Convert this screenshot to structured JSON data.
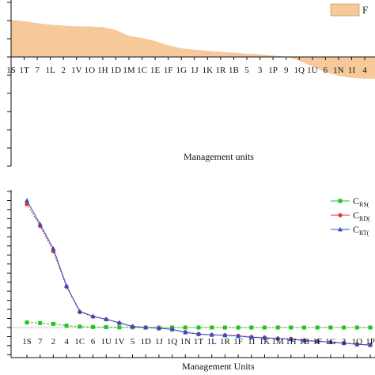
{
  "chart_data": [
    {
      "type": "area",
      "xlabel": "Management units",
      "ylabel": "",
      "ylim": [
        -3,
        1.5
      ],
      "categories": [
        "1S",
        "1T",
        "7",
        "1L",
        "2",
        "1V",
        "1O",
        "1H",
        "1D",
        "1M",
        "1C",
        "1E",
        "1F",
        "1G",
        "1J",
        "1K",
        "1R",
        "1B",
        "5",
        "3",
        "1P",
        "9",
        "1Q",
        "1U",
        "6",
        "1N",
        "1I",
        "4"
      ],
      "series": [
        {
          "name": "F",
          "values": [
            1.02,
            0.98,
            0.93,
            0.89,
            0.86,
            0.84,
            0.84,
            0.82,
            0.74,
            0.58,
            0.52,
            0.44,
            0.32,
            0.24,
            0.2,
            0.17,
            0.14,
            0.12,
            0.09,
            0.07,
            0.04,
            0.01,
            -0.1,
            -0.26,
            -0.42,
            -0.52,
            -0.57,
            -0.6
          ],
          "color": "#f6c99a"
        }
      ],
      "grid": false,
      "legend": "top-right"
    },
    {
      "type": "line",
      "xlabel": "Management Units",
      "ylabel": "",
      "ylim": [
        -1.5,
        7.5
      ],
      "categories": [
        "1S",
        "7",
        "2",
        "4",
        "1C",
        "6",
        "1U",
        "1V",
        "5",
        "1D",
        "1J",
        "1Q",
        "1N",
        "1T",
        "1L",
        "1R",
        "1F",
        "1I",
        "1K",
        "1M",
        "1H",
        "1B",
        "1F",
        "1G",
        "3",
        "1O",
        "1P"
      ],
      "series": [
        {
          "name": "C",
          "sub": "RS(",
          "color": "#22c222",
          "marker": "square",
          "values": [
            0.28,
            0.25,
            0.2,
            0.1,
            0.05,
            0.03,
            0.02,
            0.01,
            0.01,
            0.0,
            0.0,
            0.0,
            0.0,
            0.0,
            0.0,
            0.0,
            0.0,
            0.0,
            0.0,
            0.0,
            0.0,
            0.0,
            0.0,
            0.0,
            0.0,
            0.0,
            0.0
          ]
        },
        {
          "name": "C",
          "sub": "RD(",
          "color": "#e03232",
          "marker": "circle",
          "values": [
            6.8,
            5.6,
            4.2,
            2.25,
            0.85,
            0.6,
            0.45,
            0.25,
            0.05,
            0.0,
            -0.05,
            -0.1,
            -0.25,
            -0.35,
            -0.4,
            -0.42,
            -0.45,
            -0.52,
            -0.55,
            -0.6,
            -0.62,
            -0.7,
            -0.75,
            -0.8,
            -0.85,
            -0.92,
            -0.95
          ]
        },
        {
          "name": "C",
          "sub": "RT(",
          "color": "#2a4fc8",
          "marker": "triangle",
          "values": [
            7.0,
            5.7,
            4.35,
            2.3,
            0.9,
            0.62,
            0.46,
            0.27,
            0.06,
            0.01,
            -0.04,
            -0.1,
            -0.27,
            -0.36,
            -0.4,
            -0.43,
            -0.47,
            -0.54,
            -0.57,
            -0.6,
            -0.64,
            -0.72,
            -0.76,
            -0.81,
            -0.86,
            -0.93,
            -0.97
          ]
        }
      ],
      "grid": false,
      "legend": "top-right"
    }
  ]
}
